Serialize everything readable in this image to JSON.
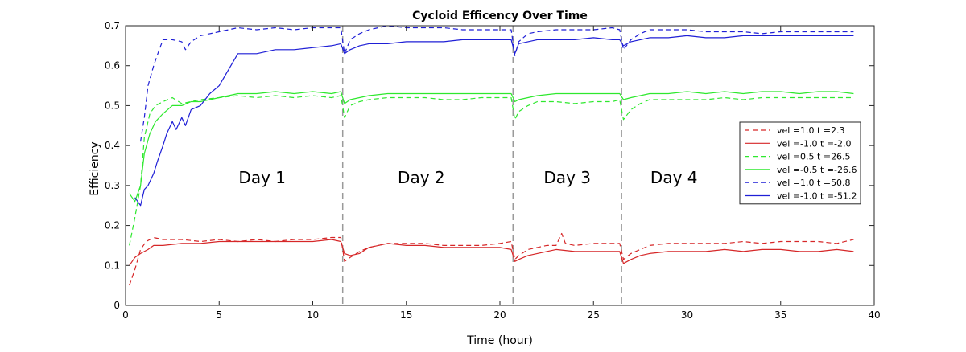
{
  "chart_data": {
    "type": "line",
    "title": "Cycloid Efficency Over Time",
    "xlabel": "Time (hour)",
    "ylabel": "Efficiency",
    "xlim": [
      0,
      40
    ],
    "ylim": [
      0,
      0.7
    ],
    "xticks": [
      "0",
      "5",
      "10",
      "15",
      "20",
      "25",
      "30",
      "35",
      "40"
    ],
    "yticks": [
      "0",
      "0.1",
      "0.2",
      "0.3",
      "0.4",
      "0.5",
      "0.6",
      "0.7"
    ],
    "grid": false,
    "legend_position": "right",
    "day_boundaries": [
      11.6,
      20.7,
      26.5
    ],
    "annotations": [
      {
        "text": "Day 1",
        "x": 7.3,
        "y": 0.32
      },
      {
        "text": "Day 2",
        "x": 15.8,
        "y": 0.32
      },
      {
        "text": "Day 3",
        "x": 23.6,
        "y": 0.32
      },
      {
        "text": "Day 4",
        "x": 29.3,
        "y": 0.32
      }
    ],
    "series": [
      {
        "name": "vel =1.0 t =2.3",
        "color": "#d62728",
        "dash": "dashed",
        "x": [
          0.2,
          0.5,
          0.8,
          1.1,
          1.5,
          2,
          3,
          4,
          5,
          6,
          7,
          8,
          9,
          10,
          11,
          11.5,
          11.7,
          12,
          12.5,
          13,
          14,
          15,
          16,
          17,
          18,
          19,
          20,
          20.6,
          20.8,
          21,
          21.5,
          22,
          22.5,
          23,
          23.3,
          23.5,
          24,
          25,
          26,
          26.4,
          26.6,
          27,
          27.5,
          28,
          29,
          30,
          31,
          32,
          33,
          34,
          35,
          36,
          37,
          38,
          38.9
        ],
        "y": [
          0.05,
          0.09,
          0.14,
          0.16,
          0.17,
          0.165,
          0.165,
          0.16,
          0.165,
          0.16,
          0.165,
          0.16,
          0.165,
          0.165,
          0.17,
          0.17,
          0.11,
          0.12,
          0.135,
          0.145,
          0.155,
          0.155,
          0.155,
          0.15,
          0.15,
          0.15,
          0.155,
          0.16,
          0.115,
          0.125,
          0.14,
          0.145,
          0.15,
          0.15,
          0.18,
          0.155,
          0.15,
          0.155,
          0.155,
          0.155,
          0.115,
          0.13,
          0.14,
          0.15,
          0.155,
          0.155,
          0.155,
          0.155,
          0.16,
          0.155,
          0.16,
          0.16,
          0.16,
          0.155,
          0.165
        ]
      },
      {
        "name": "vel =-1.0 t =-2.0",
        "color": "#d62728",
        "dash": "solid",
        "x": [
          0.2,
          0.5,
          0.8,
          1.2,
          1.5,
          2,
          3,
          4,
          5,
          6,
          7,
          8,
          9,
          10,
          11,
          11.5,
          11.7,
          12,
          12.5,
          13,
          14,
          15,
          16,
          17,
          18,
          19,
          20,
          20.6,
          20.8,
          21,
          21.5,
          22,
          23,
          24,
          25,
          26,
          26.4,
          26.6,
          27,
          27.5,
          28,
          29,
          30,
          31,
          32,
          33,
          34,
          35,
          36,
          37,
          38,
          38.9
        ],
        "y": [
          0.1,
          0.12,
          0.13,
          0.14,
          0.15,
          0.15,
          0.155,
          0.155,
          0.16,
          0.16,
          0.16,
          0.16,
          0.16,
          0.16,
          0.165,
          0.16,
          0.13,
          0.125,
          0.13,
          0.145,
          0.155,
          0.15,
          0.15,
          0.145,
          0.145,
          0.145,
          0.145,
          0.14,
          0.11,
          0.115,
          0.125,
          0.13,
          0.14,
          0.135,
          0.135,
          0.135,
          0.135,
          0.105,
          0.115,
          0.125,
          0.13,
          0.135,
          0.135,
          0.135,
          0.14,
          0.135,
          0.14,
          0.14,
          0.135,
          0.135,
          0.14,
          0.135
        ]
      },
      {
        "name": "vel =0.5 t =26.5",
        "color": "#2ee82e",
        "dash": "dashed",
        "x": [
          0.2,
          0.5,
          0.8,
          1,
          1.3,
          1.6,
          2,
          2.5,
          3,
          3.5,
          4,
          5,
          6,
          7,
          8,
          9,
          10,
          11,
          11.5,
          11.7,
          12,
          12.5,
          13,
          14,
          15,
          16,
          17,
          18,
          19,
          20,
          20.6,
          20.8,
          21,
          21.5,
          22,
          23,
          24,
          25,
          26,
          26.4,
          26.6,
          27,
          27.5,
          28,
          29,
          30,
          31,
          32,
          33,
          34,
          35,
          36,
          37,
          38,
          38.9
        ],
        "y": [
          0.15,
          0.22,
          0.3,
          0.42,
          0.48,
          0.5,
          0.51,
          0.52,
          0.505,
          0.51,
          0.515,
          0.52,
          0.525,
          0.52,
          0.525,
          0.52,
          0.525,
          0.52,
          0.525,
          0.47,
          0.5,
          0.51,
          0.515,
          0.52,
          0.52,
          0.52,
          0.515,
          0.515,
          0.52,
          0.52,
          0.52,
          0.465,
          0.485,
          0.5,
          0.51,
          0.51,
          0.505,
          0.51,
          0.51,
          0.515,
          0.465,
          0.49,
          0.505,
          0.515,
          0.515,
          0.515,
          0.515,
          0.52,
          0.515,
          0.52,
          0.52,
          0.52,
          0.52,
          0.52,
          0.52
        ]
      },
      {
        "name": "vel =-0.5 t =-26.6",
        "color": "#2ee82e",
        "dash": "solid",
        "x": [
          0.2,
          0.5,
          0.8,
          1,
          1.3,
          1.6,
          2,
          2.5,
          3,
          3.5,
          4,
          5,
          6,
          7,
          8,
          9,
          10,
          11,
          11.5,
          11.7,
          12,
          12.5,
          13,
          14,
          15,
          16,
          17,
          18,
          19,
          20,
          20.6,
          20.8,
          21,
          21.5,
          22,
          23,
          24,
          25,
          26,
          26.4,
          26.6,
          27,
          27.5,
          28,
          29,
          30,
          31,
          32,
          33,
          34,
          35,
          36,
          37,
          38,
          38.9
        ],
        "y": [
          0.28,
          0.26,
          0.3,
          0.38,
          0.43,
          0.46,
          0.48,
          0.5,
          0.5,
          0.51,
          0.51,
          0.52,
          0.53,
          0.53,
          0.535,
          0.53,
          0.535,
          0.53,
          0.535,
          0.505,
          0.515,
          0.52,
          0.525,
          0.53,
          0.53,
          0.53,
          0.53,
          0.53,
          0.53,
          0.53,
          0.53,
          0.51,
          0.515,
          0.52,
          0.525,
          0.53,
          0.53,
          0.53,
          0.53,
          0.53,
          0.515,
          0.52,
          0.525,
          0.53,
          0.53,
          0.535,
          0.53,
          0.535,
          0.53,
          0.535,
          0.535,
          0.53,
          0.535,
          0.535,
          0.53
        ]
      },
      {
        "name": "vel =1.0 t =50.8",
        "color": "#1f1fd6",
        "dash": "dashed",
        "x": [
          0.8,
          1,
          1.2,
          1.5,
          1.8,
          2,
          2.5,
          3,
          3.2,
          3.5,
          4,
          4.5,
          5,
          6,
          7,
          8,
          9,
          10,
          11,
          11.5,
          11.7,
          12,
          12.5,
          13,
          14,
          15,
          16,
          17,
          18,
          19,
          20,
          20.6,
          20.8,
          21,
          21.5,
          22,
          23,
          24,
          25,
          26,
          26.4,
          26.6,
          27,
          27.5,
          28,
          29,
          30,
          31,
          32,
          33,
          34,
          35,
          36,
          37,
          38,
          38.9
        ],
        "y": [
          0.41,
          0.47,
          0.55,
          0.6,
          0.64,
          0.665,
          0.665,
          0.66,
          0.64,
          0.66,
          0.675,
          0.68,
          0.685,
          0.695,
          0.69,
          0.695,
          0.69,
          0.695,
          0.695,
          0.695,
          0.63,
          0.665,
          0.68,
          0.69,
          0.7,
          0.695,
          0.695,
          0.695,
          0.69,
          0.69,
          0.69,
          0.69,
          0.625,
          0.66,
          0.68,
          0.685,
          0.69,
          0.69,
          0.69,
          0.695,
          0.69,
          0.64,
          0.665,
          0.68,
          0.69,
          0.69,
          0.69,
          0.685,
          0.685,
          0.685,
          0.68,
          0.685,
          0.685,
          0.685,
          0.685,
          0.685
        ]
      },
      {
        "name": "vel =-1.0 t =-51.2",
        "color": "#1f1fd6",
        "dash": "solid",
        "x": [
          0.5,
          0.8,
          1,
          1.2,
          1.5,
          1.7,
          2,
          2.2,
          2.5,
          2.7,
          3,
          3.2,
          3.5,
          4,
          4.5,
          5,
          5.5,
          6,
          7,
          8,
          9,
          10,
          11,
          11.5,
          11.7,
          12,
          12.5,
          13,
          14,
          15,
          16,
          17,
          18,
          19,
          20,
          20.6,
          20.8,
          21,
          21.5,
          22,
          23,
          24,
          25,
          26,
          26.4,
          26.6,
          27,
          27.5,
          28,
          29,
          30,
          31,
          32,
          33,
          34,
          35,
          36,
          37,
          38,
          38.9
        ],
        "y": [
          0.27,
          0.25,
          0.29,
          0.3,
          0.33,
          0.36,
          0.4,
          0.43,
          0.46,
          0.44,
          0.47,
          0.45,
          0.49,
          0.5,
          0.53,
          0.55,
          0.59,
          0.63,
          0.63,
          0.64,
          0.64,
          0.645,
          0.65,
          0.655,
          0.63,
          0.64,
          0.65,
          0.655,
          0.655,
          0.66,
          0.66,
          0.66,
          0.665,
          0.665,
          0.665,
          0.665,
          0.63,
          0.655,
          0.66,
          0.665,
          0.665,
          0.665,
          0.67,
          0.665,
          0.665,
          0.65,
          0.66,
          0.665,
          0.67,
          0.67,
          0.675,
          0.67,
          0.67,
          0.675,
          0.675,
          0.675,
          0.675,
          0.675,
          0.675,
          0.675
        ]
      }
    ]
  }
}
